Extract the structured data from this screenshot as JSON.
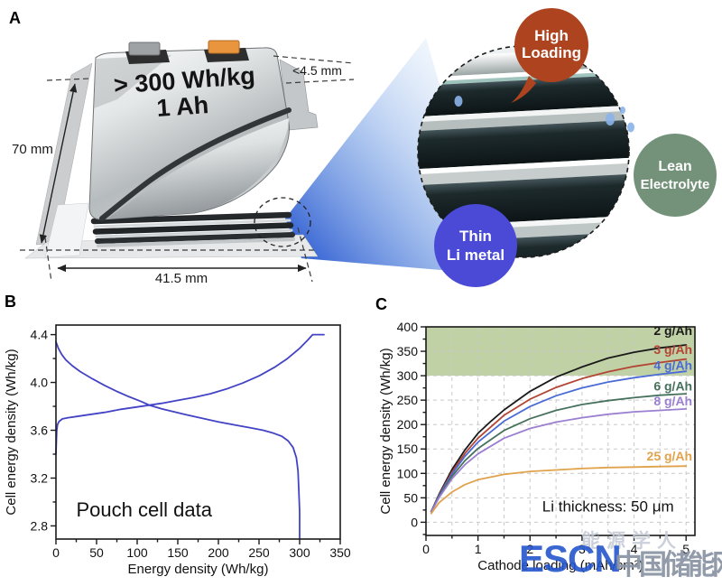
{
  "panel_a": {
    "label": "A",
    "battery": {
      "energy": "> 300 Wh/kg",
      "capacity": "1 Ah",
      "height": "70 mm",
      "width": "41.5 mm",
      "thickness": "<4.5 mm"
    },
    "callouts": {
      "high_loading": {
        "line1": "High",
        "line2": "Loading",
        "color": "#ad431f"
      },
      "lean_electrolyte": {
        "line1": "Lean",
        "line2": "Electrolyte",
        "color": "#74927a"
      },
      "thin_li": {
        "line1": "Thin",
        "line2": "Li metal",
        "color": "#4a4ad6"
      }
    }
  },
  "panel_b": {
    "label": "B"
  },
  "panel_c": {
    "label": "C"
  },
  "watermark": {
    "faint": "能源学人",
    "escn": "ESCN",
    "cn": "中国储能网"
  },
  "chart_data": [
    {
      "type": "line",
      "panel": "B",
      "title": "",
      "xlabel": "Energy density (Wh/kg)",
      "ylabel": "Cell energy density (Wh/kg)",
      "xlim": [
        0,
        350
      ],
      "ylim": [
        2.69,
        4.48
      ],
      "grid": false,
      "x_ticks": [
        0,
        50,
        100,
        150,
        200,
        250,
        300,
        350
      ],
      "x_tick_labels": [
        "0",
        "50",
        "100",
        "150",
        "200",
        "250",
        "300",
        "350"
      ],
      "x_minor": 25,
      "y_ticks": [
        2.8,
        3.2,
        3.6,
        4.0,
        4.4
      ],
      "y_tick_labels": [
        "2.8",
        "3.2",
        "3.6",
        "4.0",
        "4.4"
      ],
      "y_minor": 0.2,
      "annotations": [
        {
          "text": "Pouch cell data",
          "x": 25,
          "y": 2.88,
          "size": 22,
          "anchor": "start",
          "color": "#111"
        }
      ],
      "series": [
        {
          "name": "charge",
          "color": "#4343c6",
          "points": [
            [
              0,
              3.4
            ],
            [
              0.5,
              3.52
            ],
            [
              1,
              3.6
            ],
            [
              2,
              3.65
            ],
            [
              4,
              3.675
            ],
            [
              8,
              3.695
            ],
            [
              15,
              3.705
            ],
            [
              25,
              3.715
            ],
            [
              40,
              3.73
            ],
            [
              60,
              3.75
            ],
            [
              80,
              3.775
            ],
            [
              100,
              3.795
            ],
            [
              115,
              3.81
            ],
            [
              130,
              3.825
            ],
            [
              150,
              3.85
            ],
            [
              170,
              3.875
            ],
            [
              190,
              3.905
            ],
            [
              210,
              3.945
            ],
            [
              230,
              3.995
            ],
            [
              250,
              4.055
            ],
            [
              270,
              4.13
            ],
            [
              285,
              4.2
            ],
            [
              300,
              4.285
            ],
            [
              310,
              4.355
            ],
            [
              316,
              4.4
            ],
            [
              330,
              4.4
            ]
          ]
        },
        {
          "name": "discharge",
          "color": "#4343c6",
          "points": [
            [
              0,
              4.34
            ],
            [
              3,
              4.285
            ],
            [
              7,
              4.235
            ],
            [
              12,
              4.19
            ],
            [
              20,
              4.14
            ],
            [
              30,
              4.09
            ],
            [
              45,
              4.03
            ],
            [
              60,
              3.975
            ],
            [
              75,
              3.925
            ],
            [
              90,
              3.88
            ],
            [
              105,
              3.84
            ],
            [
              115,
              3.81
            ],
            [
              130,
              3.78
            ],
            [
              145,
              3.755
            ],
            [
              160,
              3.73
            ],
            [
              180,
              3.7
            ],
            [
              200,
              3.67
            ],
            [
              220,
              3.645
            ],
            [
              240,
              3.62
            ],
            [
              255,
              3.6
            ],
            [
              268,
              3.575
            ],
            [
              278,
              3.55
            ],
            [
              286,
              3.51
            ],
            [
              292,
              3.455
            ],
            [
              296,
              3.37
            ],
            [
              298,
              3.26
            ],
            [
              299,
              3.1
            ],
            [
              300,
              2.92
            ],
            [
              300,
              2.7
            ]
          ]
        }
      ]
    },
    {
      "type": "line",
      "panel": "C",
      "title": "",
      "xlabel": "Cathode loading (mAh/cm²)",
      "ylabel": "Cell energy density (Wh/kg)",
      "xlim": [
        0,
        5.17
      ],
      "ylim": [
        -27,
        400
      ],
      "grid": true,
      "grid_x": [
        0.5,
        1,
        1.5,
        2,
        2.5,
        3,
        3.5,
        4,
        4.5,
        5
      ],
      "grid_y": [
        0,
        50,
        100,
        150,
        200,
        250,
        300,
        350
      ],
      "band": {
        "from": 300,
        "to": 400,
        "color": "#b6c997"
      },
      "x_ticks": [
        0,
        1,
        2,
        3,
        4,
        5
      ],
      "x_tick_labels": [
        "0",
        "1",
        "2",
        "3",
        "4",
        "5"
      ],
      "x_minor": 0.5,
      "y_ticks": [
        0,
        50,
        100,
        150,
        200,
        250,
        300,
        350,
        400
      ],
      "y_tick_labels": [
        "0",
        "50",
        "100",
        "150",
        "200",
        "250",
        "300",
        "350",
        "400"
      ],
      "y_minor": 25,
      "annotations": [
        {
          "text": "Li thickness: 50 μm",
          "x": 3.5,
          "y": 22,
          "size": 17,
          "anchor": "middle",
          "color": "#111"
        }
      ],
      "series": [
        {
          "name": "2 g/Ah",
          "label": "2 g/Ah",
          "color": "#1a1a1a",
          "label_x": 5.12,
          "label_y": 383,
          "points": [
            [
              0.1,
              22
            ],
            [
              0.25,
              57
            ],
            [
              0.5,
              108
            ],
            [
              0.75,
              148
            ],
            [
              1,
              182
            ],
            [
              1.25,
              207
            ],
            [
              1.5,
              230
            ],
            [
              2,
              268
            ],
            [
              2.5,
              297
            ],
            [
              3,
              318
            ],
            [
              3.5,
              336
            ],
            [
              4,
              348
            ],
            [
              4.5,
              357
            ],
            [
              5,
              363
            ]
          ]
        },
        {
          "name": "3 g/Ah",
          "label": "3 g/Ah",
          "color": "#b24533",
          "label_x": 5.12,
          "label_y": 345,
          "points": [
            [
              0.1,
              22
            ],
            [
              0.25,
              55
            ],
            [
              0.5,
              103
            ],
            [
              0.75,
              141
            ],
            [
              1,
              172
            ],
            [
              1.5,
              219
            ],
            [
              2,
              252
            ],
            [
              2.5,
              276
            ],
            [
              3,
              294
            ],
            [
              3.5,
              308
            ],
            [
              4,
              319
            ],
            [
              4.5,
              327
            ],
            [
              5,
              334
            ]
          ]
        },
        {
          "name": "4 g/Ah",
          "label": "4 g/Ah",
          "color": "#4a6bd5",
          "label_x": 5.12,
          "label_y": 312,
          "points": [
            [
              0.1,
              22
            ],
            [
              0.25,
              54
            ],
            [
              0.5,
              99
            ],
            [
              0.75,
              135
            ],
            [
              1,
              164
            ],
            [
              1.5,
              207
            ],
            [
              2,
              237
            ],
            [
              2.5,
              259
            ],
            [
              3,
              275
            ],
            [
              3.5,
              287
            ],
            [
              4,
              296
            ],
            [
              4.5,
              303
            ],
            [
              5,
              309
            ]
          ]
        },
        {
          "name": "6 g/Ah",
          "label": "6 g/Ah",
          "color": "#46715c",
          "label_x": 5.12,
          "label_y": 270,
          "points": [
            [
              0.1,
              22
            ],
            [
              0.25,
              52
            ],
            [
              0.5,
              94
            ],
            [
              0.75,
              126
            ],
            [
              1,
              151
            ],
            [
              1.5,
              188
            ],
            [
              2,
              212
            ],
            [
              2.5,
              229
            ],
            [
              3,
              241
            ],
            [
              3.5,
              249
            ],
            [
              4,
              255
            ],
            [
              4.5,
              260
            ],
            [
              5,
              263
            ]
          ]
        },
        {
          "name": "8 g/Ah",
          "label": "8 g/Ah",
          "color": "#9b7fd0",
          "label_x": 5.12,
          "label_y": 239,
          "points": [
            [
              0.1,
              21
            ],
            [
              0.25,
              50
            ],
            [
              0.5,
              89
            ],
            [
              0.75,
              118
            ],
            [
              1,
              140
            ],
            [
              1.5,
              172
            ],
            [
              2,
              192
            ],
            [
              2.5,
              205
            ],
            [
              3,
              214
            ],
            [
              3.5,
              221
            ],
            [
              4,
              226
            ],
            [
              4.5,
              229
            ],
            [
              5,
              232
            ]
          ]
        },
        {
          "name": "25 g/Ah",
          "label": "25 g/Ah",
          "color": "#e0a24b",
          "label_x": 5.12,
          "label_y": 126,
          "points": [
            [
              0.1,
              18
            ],
            [
              0.25,
              40
            ],
            [
              0.5,
              62
            ],
            [
              0.75,
              77
            ],
            [
              1,
              87
            ],
            [
              1.5,
              98
            ],
            [
              2,
              104
            ],
            [
              2.5,
              107
            ],
            [
              3,
              110
            ],
            [
              3.5,
              112
            ],
            [
              4,
              113
            ],
            [
              4.5,
              114
            ],
            [
              5,
              115
            ]
          ]
        }
      ]
    }
  ]
}
